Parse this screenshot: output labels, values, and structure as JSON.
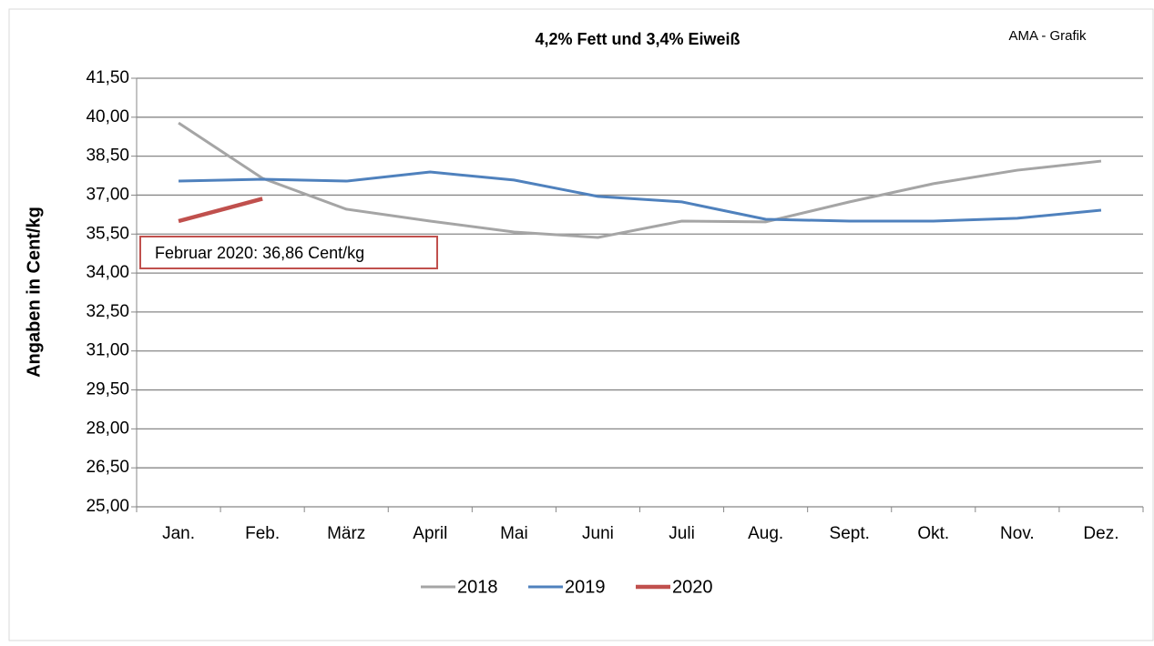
{
  "chart_data": {
    "type": "line",
    "title": "4,2% Fett und 3,4% Eiweiß",
    "source": "AMA - Grafik",
    "y_label": "Angaben in Cent/kg",
    "annotation": "Februar 2020: 36,86 Cent/kg",
    "categories": [
      "Jan.",
      "Feb.",
      "März",
      "April",
      "Mai",
      "Juni",
      "Juli",
      "Aug.",
      "Sept.",
      "Okt.",
      "Nov.",
      "Dez."
    ],
    "series": [
      {
        "name": "2018",
        "color": "#a5a5a5",
        "values": [
          39.78,
          37.65,
          36.46,
          36.0,
          35.58,
          35.37,
          36.0,
          35.97,
          36.74,
          37.44,
          37.96,
          38.31
        ]
      },
      {
        "name": "2019",
        "color": "#4f81bd",
        "values": [
          37.54,
          37.61,
          37.54,
          37.89,
          37.58,
          36.95,
          36.74,
          36.07,
          36.0,
          36.0,
          36.11,
          36.42
        ]
      },
      {
        "name": "2020",
        "color": "#c0504d",
        "values": [
          36.0,
          36.86,
          null,
          null,
          null,
          null,
          null,
          null,
          null,
          null,
          null,
          null
        ]
      }
    ],
    "ylim": [
      25,
      41.5
    ],
    "yticks": [
      {
        "value": 25,
        "label": "25,00"
      },
      {
        "value": 26.5,
        "label": "26,50"
      },
      {
        "value": 28,
        "label": "28,00"
      },
      {
        "value": 29.5,
        "label": "29,50"
      },
      {
        "value": 31,
        "label": "31,00"
      },
      {
        "value": 32.5,
        "label": "32,50"
      },
      {
        "value": 34,
        "label": "34,00"
      },
      {
        "value": 35.5,
        "label": "35,50"
      },
      {
        "value": 37,
        "label": "37,00"
      },
      {
        "value": 38.5,
        "label": "38,50"
      },
      {
        "value": 40,
        "label": "40,00"
      },
      {
        "value": 41.5,
        "label": "41,50"
      }
    ],
    "grid": true
  }
}
